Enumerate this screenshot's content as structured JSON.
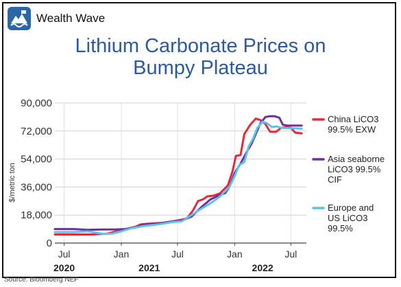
{
  "brand": {
    "name": "Wealth Wave",
    "logo_icon": "mountain-wave-icon",
    "logo_color": "#2c66a8"
  },
  "source": "Source: Bloomberg NEF",
  "chart_data": {
    "type": "line",
    "title_lines": [
      "Lithium Carbonate Prices on",
      "Bumpy Plateau"
    ],
    "ylabel": "$/metric ton",
    "xlabel": "",
    "ylim": [
      0,
      90000
    ],
    "xlim": [
      "2020-06-01",
      "2022-08-20"
    ],
    "grid": true,
    "legend_position": "right",
    "yticks": [
      {
        "value": 0,
        "label": "0"
      },
      {
        "value": 18000,
        "label": "18,000"
      },
      {
        "value": 36000,
        "label": "36,000"
      },
      {
        "value": 54000,
        "label": "54,000"
      },
      {
        "value": 72000,
        "label": "72,000"
      },
      {
        "value": 90000,
        "label": "90,000"
      }
    ],
    "xticks": [
      {
        "x": "2020-07-01",
        "label": "Jul"
      },
      {
        "x": "2021-01-01",
        "label": "Jan"
      },
      {
        "x": "2021-07-01",
        "label": "Jul"
      },
      {
        "x": "2022-01-01",
        "label": "Jan"
      },
      {
        "x": "2022-07-01",
        "label": "Jul"
      }
    ],
    "year_labels": [
      {
        "x": "2020-07-01",
        "label": "2020"
      },
      {
        "x": "2021-04-01",
        "label": "2021"
      },
      {
        "x": "2022-04-01",
        "label": "2022"
      }
    ],
    "series": [
      {
        "name_lines": [
          "China LiCO3",
          "99.5% EXW"
        ],
        "color": "#e8283a",
        "points": [
          [
            "2020-06-01",
            5500
          ],
          [
            "2020-08-01",
            5500
          ],
          [
            "2020-10-01",
            5500
          ],
          [
            "2020-11-15",
            6000
          ],
          [
            "2020-12-15",
            7500
          ],
          [
            "2021-01-15",
            9000
          ],
          [
            "2021-02-15",
            10500
          ],
          [
            "2021-03-05",
            12000
          ],
          [
            "2021-04-01",
            12500
          ],
          [
            "2021-05-15",
            13000
          ],
          [
            "2021-06-15",
            14000
          ],
          [
            "2021-07-15",
            15000
          ],
          [
            "2021-08-01",
            16000
          ],
          [
            "2021-08-20",
            21000
          ],
          [
            "2021-09-05",
            27000
          ],
          [
            "2021-09-20",
            28000
          ],
          [
            "2021-10-05",
            30000
          ],
          [
            "2021-10-25",
            30500
          ],
          [
            "2021-11-15",
            32000
          ],
          [
            "2021-12-10",
            37000
          ],
          [
            "2021-12-25",
            46000
          ],
          [
            "2022-01-05",
            56000
          ],
          [
            "2022-01-20",
            56500
          ],
          [
            "2022-02-01",
            70000
          ],
          [
            "2022-02-20",
            76000
          ],
          [
            "2022-03-10",
            80000
          ],
          [
            "2022-03-25",
            79000
          ],
          [
            "2022-04-10",
            76500
          ],
          [
            "2022-04-25",
            71500
          ],
          [
            "2022-05-15",
            71500
          ],
          [
            "2022-05-30",
            74000
          ],
          [
            "2022-06-15",
            74500
          ],
          [
            "2022-07-01",
            74000
          ],
          [
            "2022-07-15",
            71000
          ],
          [
            "2022-08-05",
            70500
          ]
        ]
      },
      {
        "name_lines": [
          "Asia seaborne",
          "LiCO3 99.5%",
          "CIF"
        ],
        "color": "#6a2fa0",
        "points": [
          [
            "2020-06-01",
            9000
          ],
          [
            "2020-08-01",
            9000
          ],
          [
            "2020-09-15",
            8500
          ],
          [
            "2020-11-01",
            8700
          ],
          [
            "2020-12-15",
            8800
          ],
          [
            "2021-01-15",
            9000
          ],
          [
            "2021-02-15",
            10000
          ],
          [
            "2021-03-15",
            12000
          ],
          [
            "2021-05-01",
            12500
          ],
          [
            "2021-06-15",
            14000
          ],
          [
            "2021-07-15",
            14500
          ],
          [
            "2021-08-15",
            17000
          ],
          [
            "2021-09-15",
            23000
          ],
          [
            "2021-10-15",
            28000
          ],
          [
            "2021-11-15",
            31000
          ],
          [
            "2021-12-01",
            32000
          ],
          [
            "2021-12-15",
            36000
          ],
          [
            "2022-01-01",
            45000
          ],
          [
            "2022-01-20",
            51000
          ],
          [
            "2022-02-10",
            59000
          ],
          [
            "2022-02-25",
            64000
          ],
          [
            "2022-03-10",
            70000
          ],
          [
            "2022-03-25",
            77000
          ],
          [
            "2022-04-10",
            81000
          ],
          [
            "2022-04-25",
            81500
          ],
          [
            "2022-05-10",
            81500
          ],
          [
            "2022-05-25",
            80500
          ],
          [
            "2022-06-05",
            76000
          ],
          [
            "2022-06-20",
            75500
          ],
          [
            "2022-08-05",
            75500
          ]
        ]
      },
      {
        "name_lines": [
          "Europe and",
          "US LiCO3",
          "99.5%"
        ],
        "color": "#5bc2ea",
        "points": [
          [
            "2020-06-01",
            7000
          ],
          [
            "2020-08-01",
            7000
          ],
          [
            "2020-09-15",
            7500
          ],
          [
            "2020-11-01",
            6000
          ],
          [
            "2020-12-01",
            6000
          ],
          [
            "2021-01-01",
            7500
          ],
          [
            "2021-02-01",
            9500
          ],
          [
            "2021-03-15",
            11000
          ],
          [
            "2021-05-01",
            12000
          ],
          [
            "2021-06-15",
            13500
          ],
          [
            "2021-07-15",
            14000
          ],
          [
            "2021-08-15",
            18000
          ],
          [
            "2021-09-15",
            22000
          ],
          [
            "2021-10-15",
            25500
          ],
          [
            "2021-11-15",
            30000
          ],
          [
            "2021-12-15",
            36000
          ],
          [
            "2022-01-01",
            43000
          ],
          [
            "2022-01-15",
            50000
          ],
          [
            "2022-02-01",
            52000
          ],
          [
            "2022-02-15",
            62000
          ],
          [
            "2022-03-01",
            67000
          ],
          [
            "2022-03-15",
            74000
          ],
          [
            "2022-04-01",
            78000
          ],
          [
            "2022-04-15",
            77000
          ],
          [
            "2022-05-01",
            74500
          ],
          [
            "2022-05-15",
            75000
          ],
          [
            "2022-06-01",
            74000
          ],
          [
            "2022-08-05",
            73500
          ]
        ]
      }
    ]
  }
}
